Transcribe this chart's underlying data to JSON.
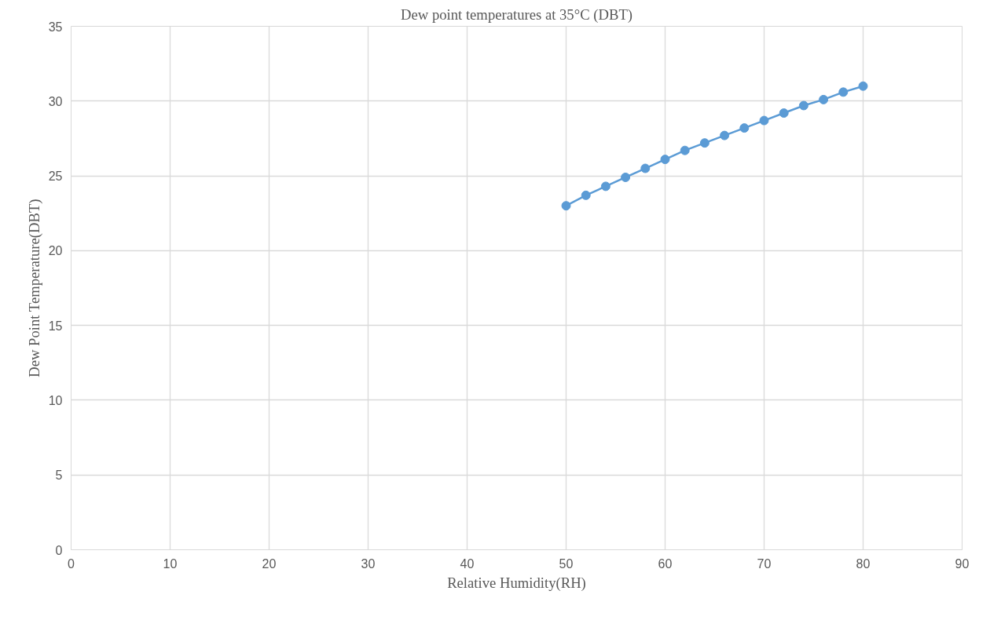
{
  "chart_data": {
    "type": "line",
    "title": "Dew point temperatures at 35°C (DBT)",
    "xlabel": "Relative Humidity(RH)",
    "ylabel": "Dew Point Temperature(DBT)",
    "x": [
      50,
      52,
      54,
      56,
      58,
      60,
      62,
      64,
      66,
      68,
      70,
      72,
      74,
      76,
      78,
      80
    ],
    "series": [
      {
        "color": "#5b9bd5",
        "values": [
          23.0,
          23.7,
          24.3,
          24.9,
          25.5,
          26.1,
          26.7,
          27.2,
          27.7,
          28.2,
          28.7,
          29.2,
          29.7,
          30.1,
          30.6,
          31.0
        ]
      }
    ],
    "xlim": [
      0,
      90
    ],
    "xticks": [
      0,
      10,
      20,
      30,
      40,
      50,
      60,
      70,
      80,
      90
    ],
    "ylim": [
      0,
      35
    ],
    "yticks": [
      0,
      5,
      10,
      15,
      20,
      25,
      30,
      35
    ],
    "grid": true,
    "marker": "circle",
    "line_style": "solid"
  }
}
